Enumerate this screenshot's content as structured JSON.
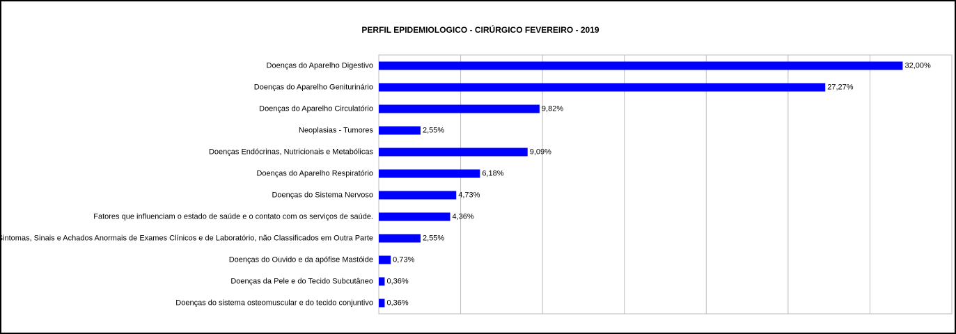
{
  "chart_data": {
    "type": "bar",
    "orientation": "horizontal",
    "title": "PERFIL EPIDEMIOLOGICO - CIRÚRGICO FEVEREIRO - 2019",
    "categories": [
      "Doenças do Aparelho Digestivo",
      "Doenças do Aparelho Geniturinário",
      "Doenças do Aparelho Circulatório",
      "Neoplasias - Tumores",
      "Doenças Endócrinas, Nutricionais e Metabólicas",
      "Doenças do Aparelho Respiratório",
      "Doenças do Sistema Nervoso",
      "Fatores que influenciam o estado de saúde e o contato com os serviços de saúde.",
      "Sintomas, Sinais e Achados Anormais de Exames Clínicos e de Laboratório, não Classificados em Outra Parte",
      "Doenças do Ouvido e da apófise Mastóide",
      "Doenças da Pele e do Tecido Subcutâneo",
      "Doenças do sistema osteomuscular e do tecido conjuntivo"
    ],
    "values": [
      32.0,
      27.27,
      9.82,
      2.55,
      9.09,
      6.18,
      4.73,
      4.36,
      2.55,
      0.73,
      0.36,
      0.36
    ],
    "value_labels": [
      "32,00%",
      "27,27%",
      "9,82%",
      "2,55%",
      "9,09%",
      "6,18%",
      "4,73%",
      "4,36%",
      "2,55%",
      "0,73%",
      "0,36%",
      "0,36%"
    ],
    "color": "#0000ff",
    "xlim": [
      0,
      35
    ],
    "xticks": [
      0,
      5,
      10,
      15,
      20,
      25,
      30,
      35
    ],
    "grid": true
  }
}
